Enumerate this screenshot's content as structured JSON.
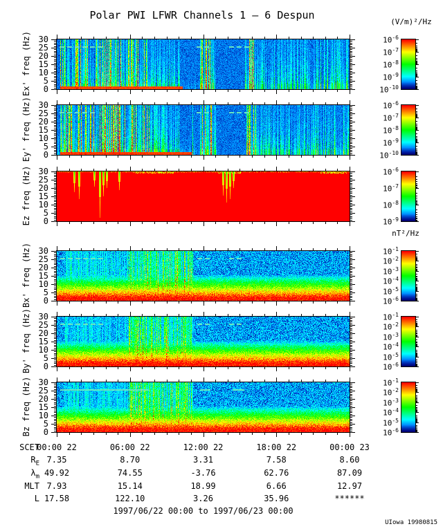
{
  "title": "Polar PWI LFWR Channels 1 – 6 Despun",
  "credit": "UIowa 19980815",
  "colors": {
    "background": "#ffffff",
    "axis": "#000000",
    "dash_line": "#6ae6c0",
    "colormap": "rainbow blue(low) to red(high)"
  },
  "chart_data": {
    "type": "heatmap",
    "title": "Polar PWI LFWR Channels 1 – 6 Despun",
    "time_range_label": "1997/06/22 00:00 to 1997/06/23 00:00",
    "units": {
      "electric": "(V/m)²/Hz",
      "magnetic": "nT²/Hz"
    },
    "x_axis": {
      "range_hours": [
        0,
        24
      ],
      "major_tick_hours": [
        0,
        6,
        12,
        18,
        24
      ],
      "tick_labels": [
        "00:00 22",
        "06:00 22",
        "12:00 22",
        "18:00 22",
        "00:00 23"
      ],
      "minor_every_hours": 1
    },
    "y_axis": {
      "range_hz": [
        0,
        30
      ],
      "major_ticks_hz": [
        0,
        5,
        10,
        15,
        20,
        25,
        30
      ],
      "minor_every_hz": 1
    },
    "panels": [
      {
        "id": "ex",
        "component": "Ex'",
        "kind": "E",
        "ylabel": "Ex' freq (Hz)",
        "cbar_exponents": [
          -6,
          -7,
          -8,
          -9,
          -10
        ],
        "activity_segments": [
          [
            0,
            0.012,
            0.25
          ],
          [
            0.012,
            0.31,
            0.88
          ],
          [
            0.31,
            0.42,
            0.6
          ],
          [
            0.42,
            0.49,
            0.18
          ],
          [
            0.49,
            0.545,
            1.0
          ],
          [
            0.545,
            0.645,
            0.12
          ],
          [
            0.645,
            0.682,
            1.0
          ],
          [
            0.682,
            0.88,
            0.55
          ],
          [
            0.88,
            1.0,
            0.68
          ]
        ],
        "bottom_band": [
          [
            0.012,
            0.43,
            0.96
          ]
        ],
        "dashes": [
          [
            0.01,
            0.155
          ],
          [
            0.478,
            0.53
          ],
          [
            0.588,
            0.645
          ]
        ],
        "dash_style": "dashed",
        "seed": 11
      },
      {
        "id": "ey",
        "component": "Ey'",
        "kind": "E",
        "ylabel": "Ey' freq (Hz)",
        "cbar_exponents": [
          -6,
          -7,
          -8,
          -9,
          -10
        ],
        "activity_segments": [
          [
            0,
            0.012,
            0.3
          ],
          [
            0.012,
            0.33,
            1.0
          ],
          [
            0.33,
            0.42,
            0.68
          ],
          [
            0.42,
            0.49,
            0.22
          ],
          [
            0.49,
            0.545,
            1.0
          ],
          [
            0.545,
            0.645,
            0.14
          ],
          [
            0.645,
            0.682,
            1.0
          ],
          [
            0.682,
            0.88,
            0.6
          ],
          [
            0.88,
            1.0,
            0.72
          ]
        ],
        "bottom_band": [
          [
            0.012,
            0.46,
            0.97
          ]
        ],
        "dashes": [
          [
            0.01,
            0.12
          ],
          [
            0.478,
            0.53
          ],
          [
            0.588,
            0.645
          ]
        ],
        "dash_style": "dashed",
        "seed": 22
      },
      {
        "id": "ez",
        "component": "Ez",
        "kind": "Ez",
        "ylabel": "Ez freq (Hz)",
        "cbar_exponents": [
          -6,
          -7,
          -8,
          -9
        ],
        "dips": [
          {
            "x": 0.059,
            "depth": 0.42
          },
          {
            "x": 0.076,
            "depth": 0.55
          },
          {
            "x": 0.128,
            "depth": 0.3
          },
          {
            "x": 0.146,
            "depth": 0.93
          },
          {
            "x": 0.158,
            "depth": 0.5
          },
          {
            "x": 0.171,
            "depth": 0.33
          },
          {
            "x": 0.213,
            "depth": 0.38
          },
          {
            "x": 0.568,
            "depth": 0.48
          },
          {
            "x": 0.58,
            "depth": 0.62
          },
          {
            "x": 0.592,
            "depth": 0.55
          },
          {
            "x": 0.604,
            "depth": 0.33
          }
        ],
        "top_speckle_zones": [
          [
            0.27,
            0.4
          ],
          [
            0.55,
            0.63
          ],
          [
            0.9,
            0.99
          ]
        ],
        "seed": 33
      },
      {
        "id": "bx",
        "component": "Bx'",
        "kind": "B",
        "ylabel": "Bx' freq (Hz)",
        "cbar_exponents": [
          -1,
          -2,
          -3,
          -4,
          -5,
          -6
        ],
        "enhancement": [
          0.025,
          0.245,
          0.5
        ],
        "burst": [
          0.245,
          0.465,
          1.0
        ],
        "dashes": [
          [
            0.013,
            0.145
          ],
          [
            0.48,
            0.525
          ],
          [
            0.588,
            0.637
          ]
        ],
        "dash_style": "dashed",
        "seed": 44
      },
      {
        "id": "by",
        "component": "By'",
        "kind": "B",
        "ylabel": "By' freq (Hz)",
        "cbar_exponents": [
          -1,
          -2,
          -3,
          -4,
          -5,
          -6
        ],
        "enhancement": [
          0.025,
          0.245,
          0.45
        ],
        "burst": [
          0.245,
          0.465,
          0.95
        ],
        "dashes": [
          [
            0.013,
            0.145
          ],
          [
            0.48,
            0.525
          ],
          [
            0.588,
            0.637
          ]
        ],
        "dash_style": "dashed",
        "seed": 55
      },
      {
        "id": "bz",
        "component": "Bz",
        "kind": "B",
        "ylabel": "Bz freq (Hz)",
        "cbar_exponents": [
          -1,
          -2,
          -3,
          -4,
          -5,
          -6
        ],
        "enhancement": [
          0.025,
          0.245,
          0.45
        ],
        "burst": [
          0.245,
          0.465,
          0.95
        ],
        "dashes": [
          [
            0.013,
            0.315
          ],
          [
            0.49,
            0.525
          ],
          [
            0.6,
            0.64
          ]
        ],
        "dash_style": "solid",
        "seed": 66
      }
    ],
    "ephemeris": {
      "rows": [
        {
          "label": "SCET",
          "sub": "",
          "values": [
            "00:00 22",
            "06:00 22",
            "12:00 22",
            "18:00 22",
            "00:00 23"
          ]
        },
        {
          "label": "R",
          "sub": "E",
          "values": [
            "7.35",
            "8.70",
            "3.31",
            "7.58",
            "8.60"
          ]
        },
        {
          "label": "λ",
          "sub": "m",
          "values": [
            "49.92",
            "74.55",
            "-3.76",
            "62.76",
            "87.09"
          ]
        },
        {
          "label": "MLT",
          "sub": "",
          "values": [
            "7.93",
            "15.14",
            "18.99",
            "6.66",
            "12.97"
          ]
        },
        {
          "label": "L",
          "sub": "",
          "values": [
            "17.58",
            "122.10",
            "3.26",
            "35.96",
            "******"
          ]
        }
      ]
    }
  }
}
